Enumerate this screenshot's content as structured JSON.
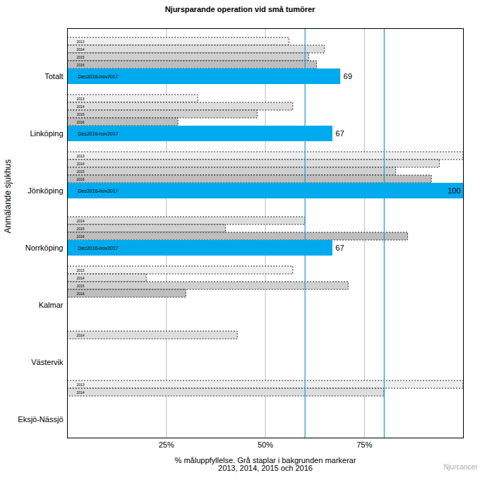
{
  "chart_data": {
    "type": "bar",
    "orientation": "horizontal",
    "title": "Njursparande operation vid små tumörer",
    "x_label": "% måluppfyllelse. Grå staplar i bakgrunden markerar\n2013, 2014, 2015 och 2016",
    "y_label": "Anmälande sjukhus",
    "credit": "Njurcancer",
    "categories": [
      "Totalt",
      "Linköping",
      "Jönköping",
      "Norrköping",
      "Kalmar",
      "Västervik",
      "Eksjö-Nässjö"
    ],
    "series": [
      {
        "name": "2013",
        "color": "#eeeeee",
        "values": [
          56,
          33,
          100,
          null,
          57,
          null,
          100
        ]
      },
      {
        "name": "2014",
        "color": "#dddddd",
        "values": [
          65,
          57,
          94,
          60,
          20,
          43,
          80
        ]
      },
      {
        "name": "2015",
        "color": "#d0d0d0",
        "values": [
          61,
          48,
          83,
          40,
          71,
          null,
          null
        ]
      },
      {
        "name": "2016",
        "color": "#bebebe",
        "values": [
          63,
          28,
          92,
          86,
          30,
          null,
          null
        ]
      },
      {
        "name": "Dec2016-nov2017",
        "color": "#00aaee",
        "data_labels": true,
        "values": [
          69,
          67,
          100,
          67,
          null,
          null,
          null
        ]
      }
    ],
    "reference_lines": [
      60,
      80
    ],
    "xlim": [
      0,
      100
    ],
    "xticks": [
      {
        "value": 25,
        "label": "25%"
      },
      {
        "value": 50,
        "label": "50%"
      },
      {
        "value": 75,
        "label": "75%"
      }
    ],
    "grid": true
  }
}
